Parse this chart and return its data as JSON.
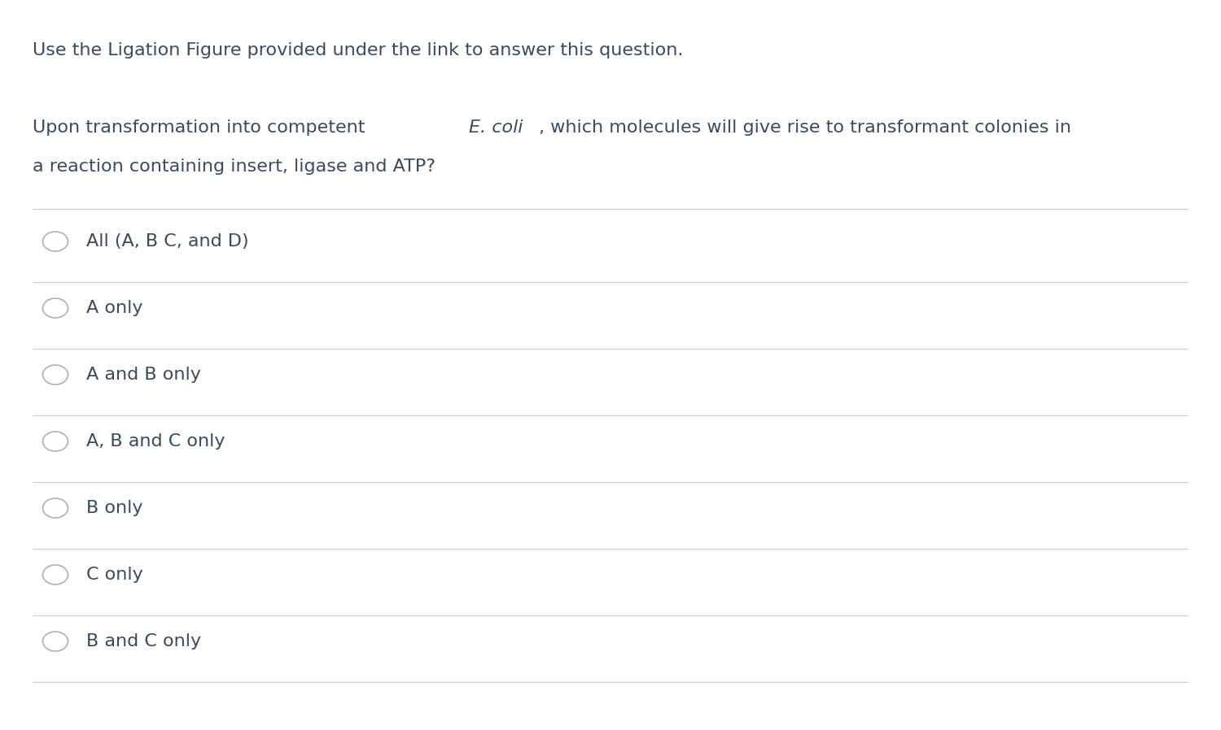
{
  "background_color": "#ffffff",
  "header_text": "Use the Ligation Figure provided under the link to answer this question.",
  "question_line1_pre": "Upon transformation into competent ",
  "question_line1_italic": "E. coli",
  "question_line1_post": ", which molecules will give rise to transformant colonies in",
  "question_line2": "a reaction containing insert, ligase and ATP?",
  "options": [
    "All (A, B C, and D)",
    "A only",
    "A and B only",
    "A, B and C only",
    "B only",
    "C only",
    "B and C only"
  ],
  "text_color": "#3d4a5c",
  "line_color": "#d0d0d0",
  "circle_edge_color": "#b0b0b0",
  "header_fontsize": 16,
  "question_fontsize": 16,
  "option_fontsize": 16,
  "fig_width": 15.0,
  "fig_height": 8.98,
  "dpi": 100
}
